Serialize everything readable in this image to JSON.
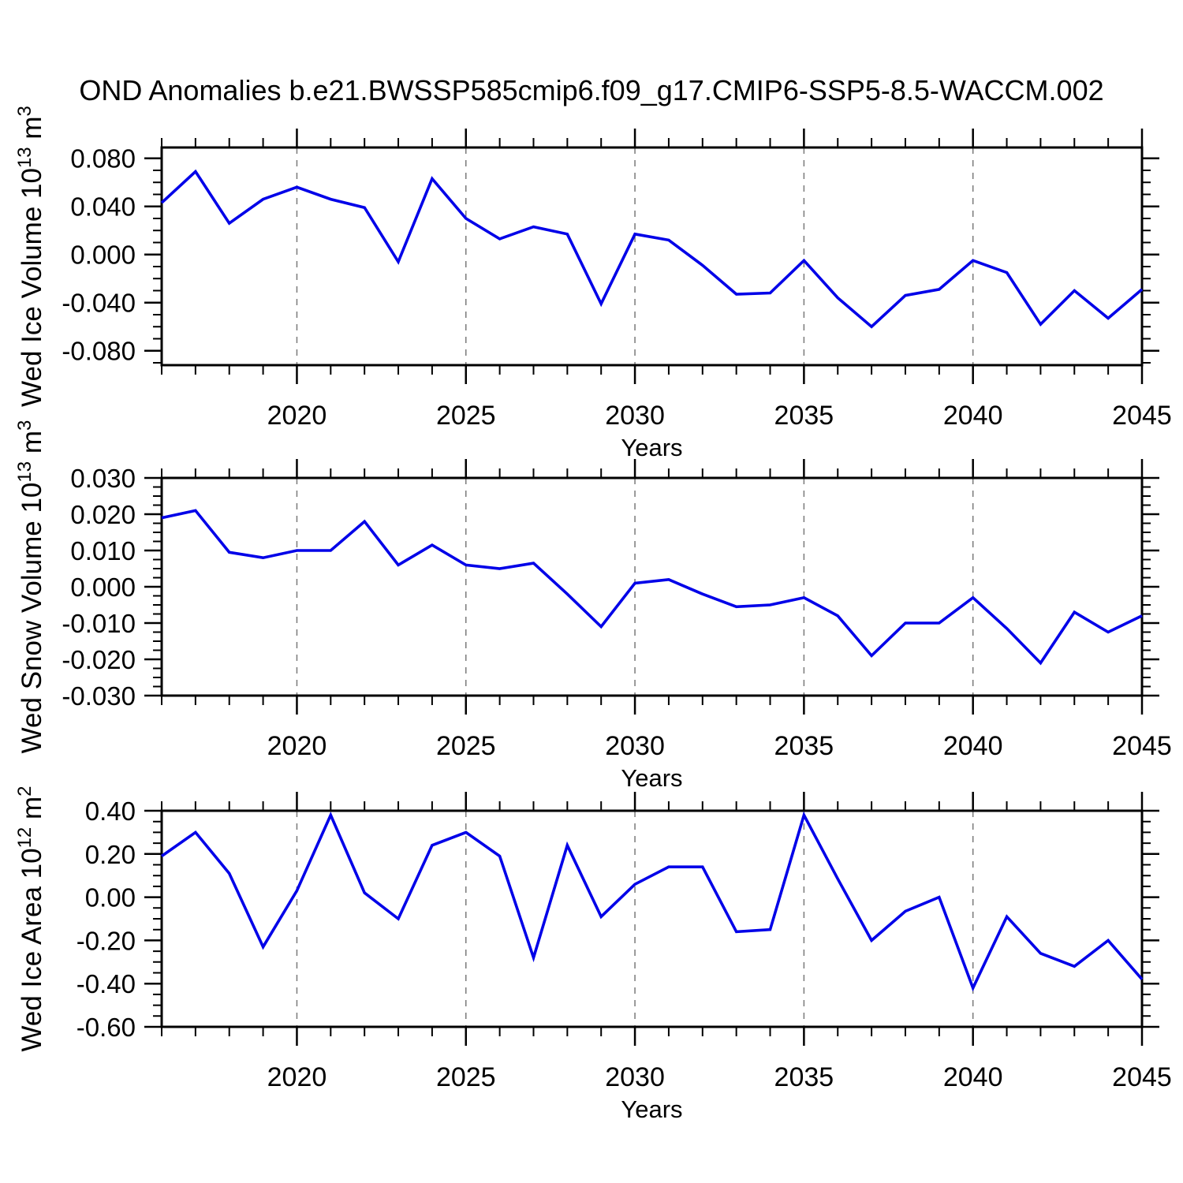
{
  "title": "OND Anomalies b.e21.BWSSP585cmip6.f09_g17.CMIP6-SSP5-8.5-WACCM.002",
  "colors": {
    "line": "#0000E8",
    "grid": "#7A7A7A",
    "axis": "#000000",
    "background": "#FFFFFF"
  },
  "years": [
    2016,
    2017,
    2018,
    2019,
    2020,
    2021,
    2022,
    2023,
    2024,
    2025,
    2026,
    2027,
    2028,
    2029,
    2030,
    2031,
    2032,
    2033,
    2034,
    2035,
    2036,
    2037,
    2038,
    2039,
    2040,
    2041,
    2042,
    2043,
    2044,
    2045
  ],
  "x_axis": {
    "label": "Years",
    "range": [
      2016,
      2045
    ],
    "major_tick_years": [
      2020,
      2025,
      2030,
      2035,
      2040,
      2045
    ],
    "major_tick_labels": [
      "2020",
      "2025",
      "2030",
      "2035",
      "2040",
      "2045"
    ],
    "grid_years": [
      2020,
      2025,
      2030,
      2035,
      2040
    ],
    "minor_step": 1
  },
  "chart_data": [
    {
      "type": "line",
      "name": "wed-ice-volume",
      "ylabel_plain": "Wed Ice Volume 10^13 m^3",
      "ylabel_parts": [
        {
          "t": "Wed Ice Volume 10"
        },
        {
          "t": "13",
          "sup": true
        },
        {
          "t": " m"
        },
        {
          "t": "3",
          "sup": true
        }
      ],
      "xlabel": "Years",
      "ylim": [
        -0.092,
        0.089
      ],
      "yticks": [
        {
          "v": 0.08,
          "label": "0.080"
        },
        {
          "v": 0.04,
          "label": "0.040"
        },
        {
          "v": 0.0,
          "label": "0.000"
        },
        {
          "v": -0.04,
          "label": "-0.040"
        },
        {
          "v": -0.08,
          "label": "-0.080"
        }
      ],
      "y_minor_step": 0.01,
      "values": [
        0.043,
        0.069,
        0.026,
        0.046,
        0.056,
        0.046,
        0.039,
        -0.006,
        0.063,
        0.03,
        0.013,
        0.023,
        0.017,
        -0.041,
        0.017,
        0.012,
        -0.009,
        -0.033,
        -0.032,
        -0.005,
        -0.036,
        -0.06,
        -0.034,
        -0.029,
        -0.005,
        -0.015,
        -0.058,
        -0.03,
        -0.053,
        -0.029
      ]
    },
    {
      "type": "line",
      "name": "wed-snow-volume",
      "ylabel_plain": "Wed Snow Volume 10^13 m^3",
      "ylabel_parts": [
        {
          "t": "Wed Snow Volume 10"
        },
        {
          "t": "13",
          "sup": true
        },
        {
          "t": " m"
        },
        {
          "t": "3",
          "sup": true
        }
      ],
      "xlabel": "Years",
      "ylim": [
        -0.03,
        0.03
      ],
      "yticks": [
        {
          "v": 0.03,
          "label": "0.030"
        },
        {
          "v": 0.02,
          "label": "0.020"
        },
        {
          "v": 0.01,
          "label": "0.010"
        },
        {
          "v": 0.0,
          "label": "0.000"
        },
        {
          "v": -0.01,
          "label": "-0.010"
        },
        {
          "v": -0.02,
          "label": "-0.020"
        },
        {
          "v": -0.03,
          "label": "-0.030"
        }
      ],
      "y_minor_step": 0.0025,
      "values": [
        0.019,
        0.021,
        0.0095,
        0.008,
        0.01,
        0.01,
        0.018,
        0.006,
        0.0115,
        0.006,
        0.005,
        0.0065,
        -0.002,
        -0.011,
        0.001,
        0.002,
        -0.002,
        -0.0055,
        -0.005,
        -0.003,
        -0.008,
        -0.019,
        -0.01,
        -0.01,
        -0.003,
        -0.0115,
        -0.021,
        -0.007,
        -0.0125,
        -0.008
      ]
    },
    {
      "type": "line",
      "name": "wed-ice-area",
      "ylabel_plain": "Wed Ice Area 10^12 m^2",
      "ylabel_parts": [
        {
          "t": "Wed Ice Area 10"
        },
        {
          "t": "12",
          "sup": true
        },
        {
          "t": " m"
        },
        {
          "t": "2",
          "sup": true
        }
      ],
      "xlabel": "Years",
      "ylim": [
        -0.6,
        0.4
      ],
      "yticks": [
        {
          "v": 0.4,
          "label": "0.40"
        },
        {
          "v": 0.2,
          "label": "0.20"
        },
        {
          "v": 0.0,
          "label": "0.00"
        },
        {
          "v": -0.2,
          "label": "-0.20"
        },
        {
          "v": -0.4,
          "label": "-0.40"
        },
        {
          "v": -0.6,
          "label": "-0.60"
        }
      ],
      "y_minor_step": 0.05,
      "values": [
        0.19,
        0.3,
        0.11,
        -0.23,
        0.03,
        0.38,
        0.02,
        -0.1,
        0.24,
        0.3,
        0.19,
        -0.28,
        0.24,
        -0.09,
        0.06,
        0.14,
        0.14,
        -0.16,
        -0.15,
        0.38,
        0.085,
        -0.2,
        -0.065,
        0.0,
        -0.42,
        -0.09,
        -0.26,
        -0.32,
        -0.2,
        -0.38
      ]
    }
  ]
}
